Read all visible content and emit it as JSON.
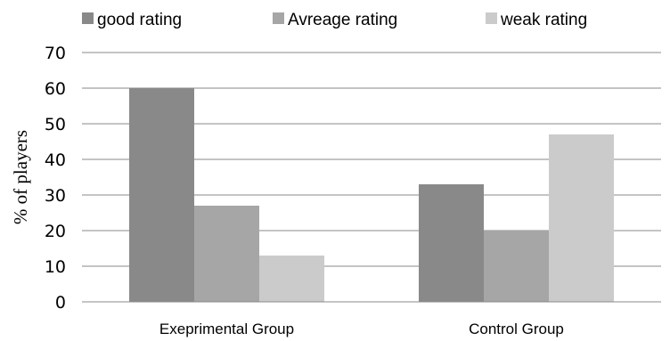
{
  "chart_data": {
    "type": "bar",
    "title": "",
    "xlabel": "",
    "ylabel": "% of players",
    "categories": [
      "Exeprimental Group",
      "Control Group"
    ],
    "series": [
      {
        "name": "good rating",
        "values": [
          60,
          33
        ],
        "color": "#898989"
      },
      {
        "name": "Avreage rating",
        "values": [
          27,
          20
        ],
        "color": "#a6a6a6"
      },
      {
        "name": "weak rating",
        "values": [
          13,
          47
        ],
        "color": "#cbcbcb"
      }
    ],
    "ylim": [
      0,
      70
    ],
    "yticks": [
      0,
      10,
      20,
      30,
      40,
      50,
      60,
      70
    ],
    "grid": true,
    "legend_position": "top"
  }
}
